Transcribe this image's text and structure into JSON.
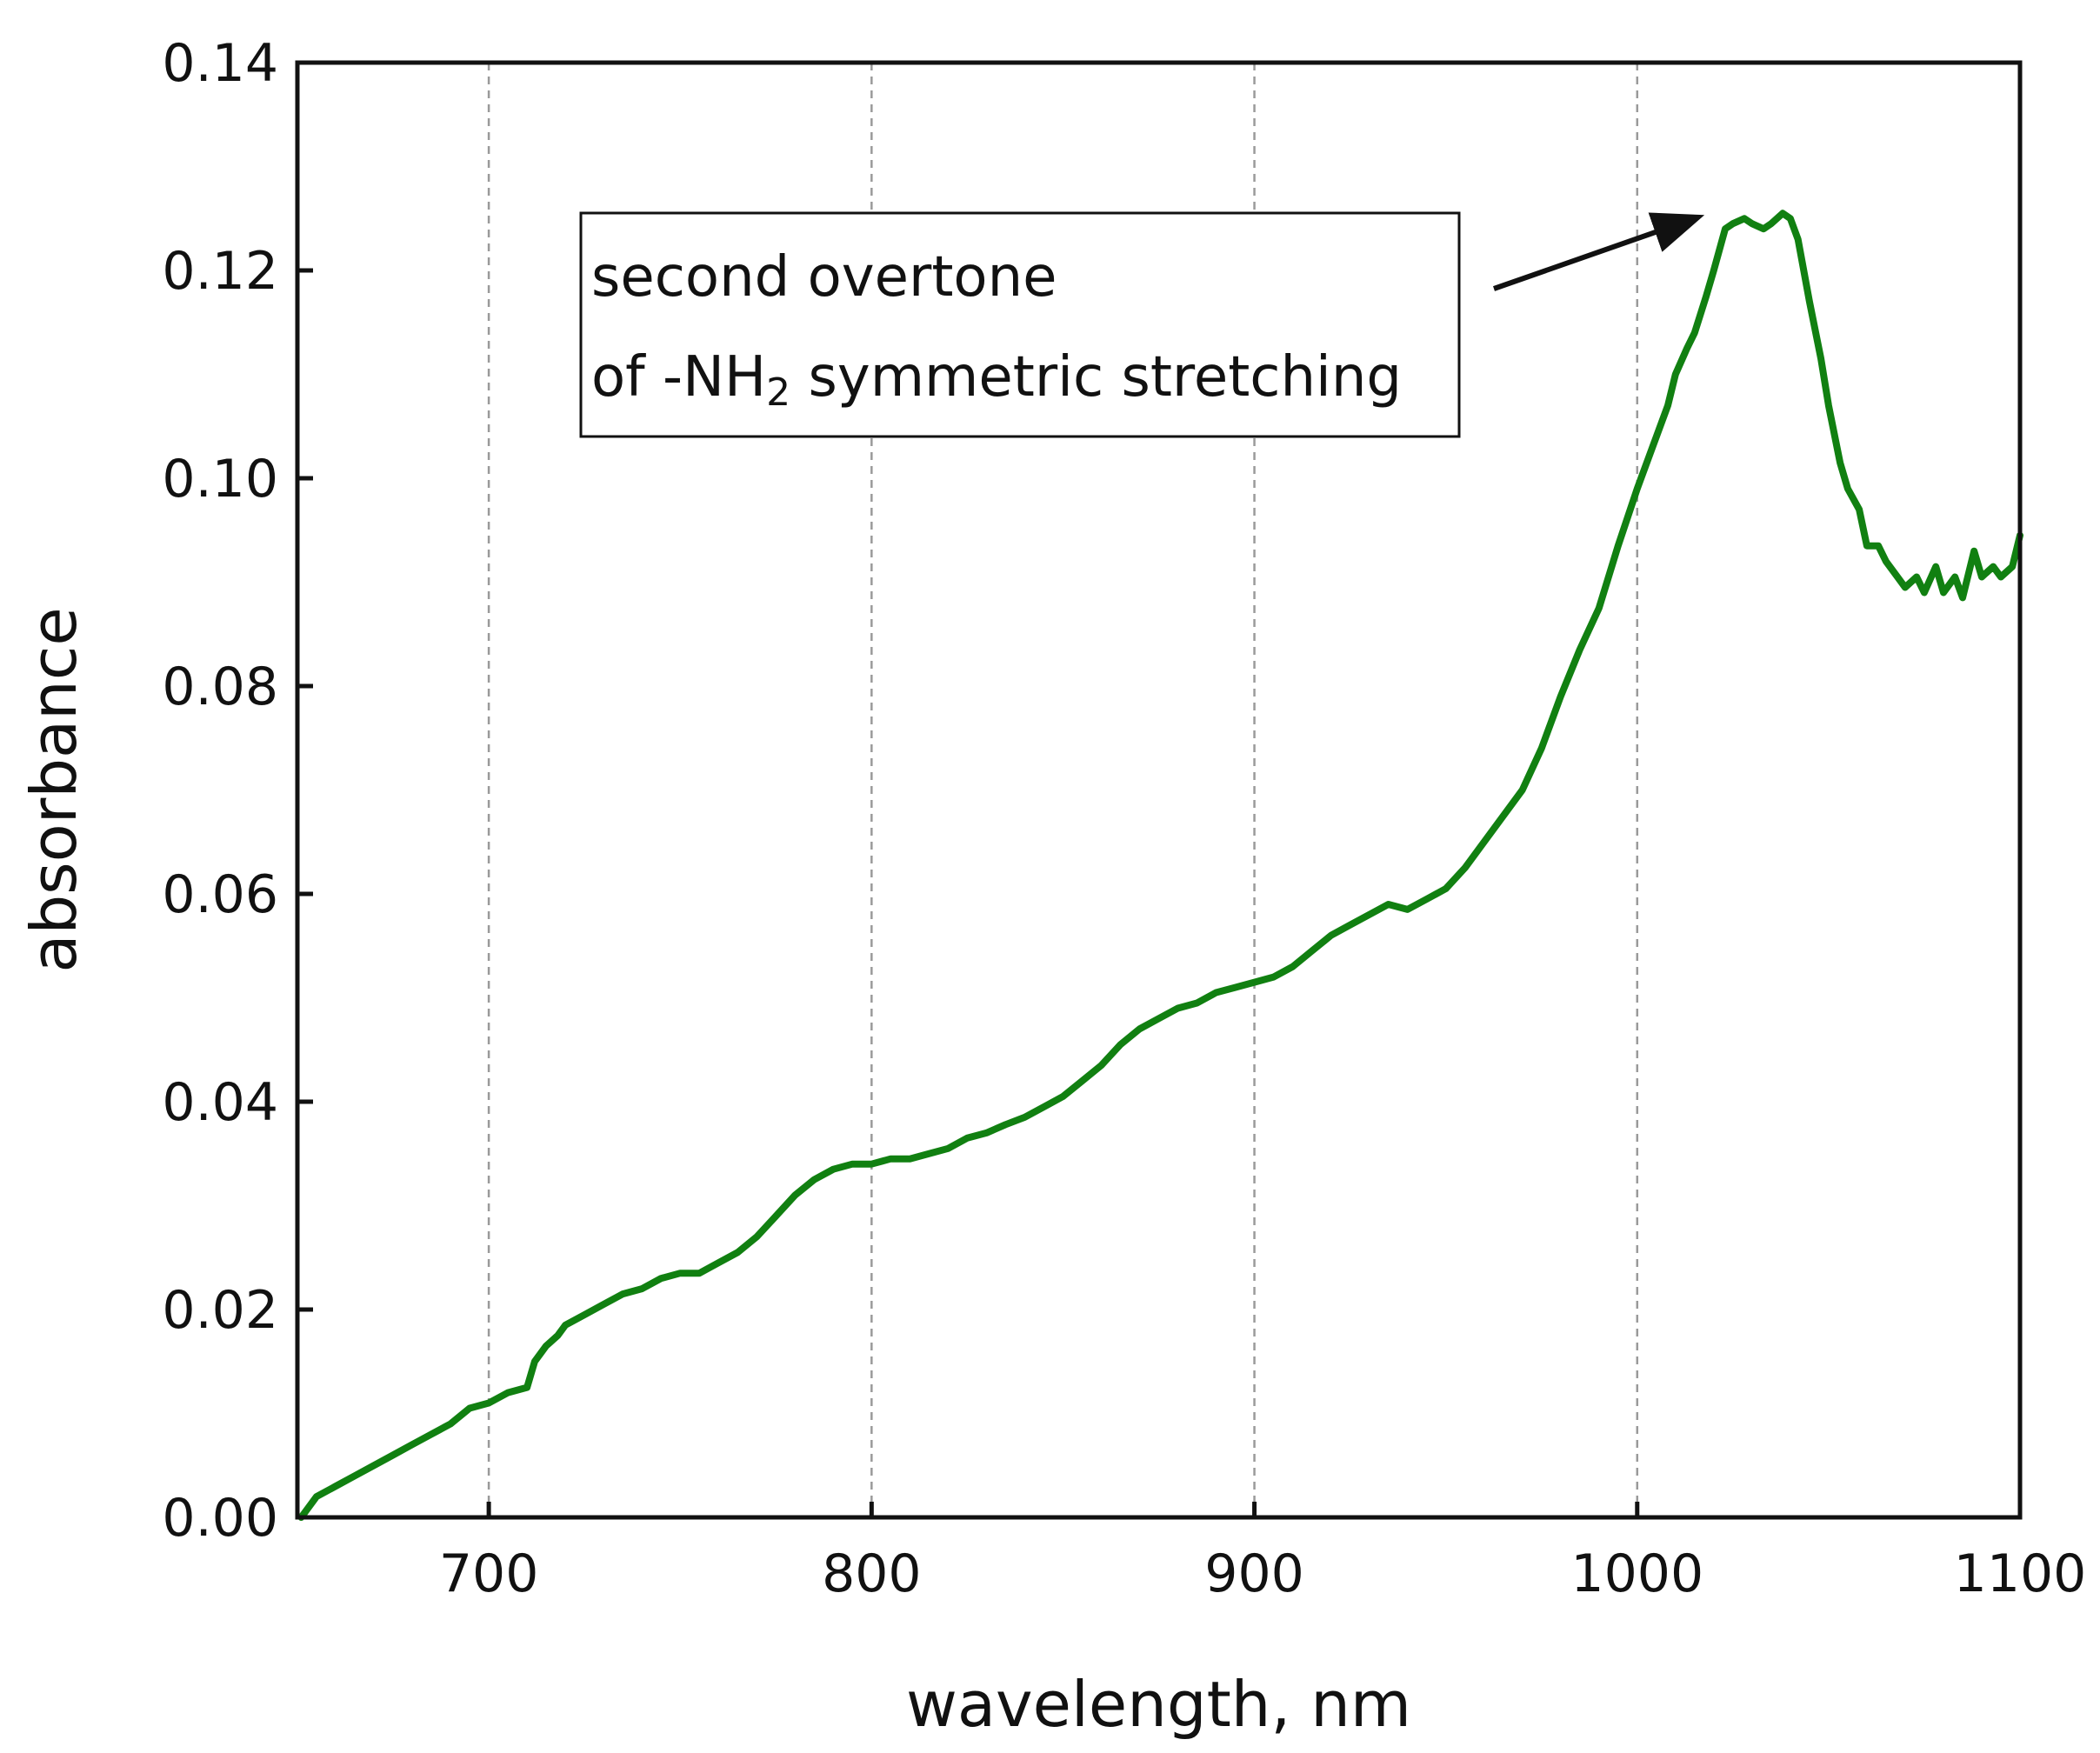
{
  "chart_data": {
    "type": "line",
    "title": "",
    "xlabel": "wavelength, nm",
    "ylabel": "absorbance",
    "xlim": [
      650,
      1100
    ],
    "ylim": [
      0,
      0.14
    ],
    "x_ticks": [
      700,
      800,
      900,
      1000,
      1100
    ],
    "x_tick_labels": [
      "700",
      "800",
      "900",
      "1000",
      "1100"
    ],
    "y_ticks": [
      0.0,
      0.02,
      0.04,
      0.06,
      0.08,
      0.1,
      0.12,
      0.14
    ],
    "y_tick_labels": [
      "0.00",
      "0.02",
      "0.04",
      "0.06",
      "0.08",
      "0.10",
      "0.12",
      "0.14"
    ],
    "grid": "vertical dashed lines at x ticks",
    "line_color": "#118011",
    "grid_color": "#9a9a9a",
    "annotation": {
      "line1": "second overtone",
      "line2_prefix": "of -NH",
      "line2_subscript": "2",
      "line2_suffix": " symmetric stretching",
      "arrow_points_to": [
        1015,
        0.125
      ]
    },
    "series": [
      {
        "x": [
          651,
          655,
          660,
          665,
          670,
          675,
          680,
          685,
          690,
          695,
          700,
          705,
          710,
          712,
          715,
          718,
          720,
          725,
          730,
          735,
          740,
          745,
          750,
          755,
          760,
          765,
          770,
          775,
          780,
          785,
          790,
          795,
          800,
          805,
          810,
          815,
          820,
          825,
          830,
          835,
          840,
          845,
          850,
          855,
          860,
          865,
          870,
          875,
          880,
          885,
          890,
          895,
          900,
          905,
          910,
          915,
          920,
          925,
          930,
          935,
          940,
          945,
          950,
          955,
          960,
          965,
          970,
          975,
          980,
          985,
          990,
          995,
          1000,
          1005,
          1008,
          1010,
          1013,
          1015,
          1018,
          1020,
          1023,
          1025,
          1028,
          1030,
          1033,
          1035,
          1038,
          1040,
          1042,
          1045,
          1048,
          1050,
          1053,
          1055,
          1058,
          1060,
          1063,
          1065,
          1068,
          1070,
          1073,
          1075,
          1078,
          1080,
          1083,
          1085,
          1088,
          1090,
          1093,
          1095,
          1098,
          1100
        ],
        "y": [
          0.0,
          0.002,
          0.003,
          0.004,
          0.005,
          0.006,
          0.007,
          0.008,
          0.009,
          0.0105,
          0.011,
          0.012,
          0.0125,
          0.015,
          0.0165,
          0.0175,
          0.0185,
          0.0195,
          0.0205,
          0.0215,
          0.022,
          0.023,
          0.0235,
          0.0235,
          0.0245,
          0.0255,
          0.027,
          0.029,
          0.031,
          0.0325,
          0.0335,
          0.034,
          0.034,
          0.0345,
          0.0345,
          0.035,
          0.0355,
          0.0365,
          0.037,
          0.0378,
          0.0385,
          0.0395,
          0.0405,
          0.042,
          0.0435,
          0.0455,
          0.047,
          0.048,
          0.049,
          0.0495,
          0.0505,
          0.051,
          0.0515,
          0.052,
          0.053,
          0.0545,
          0.056,
          0.057,
          0.058,
          0.059,
          0.0585,
          0.0595,
          0.0605,
          0.0625,
          0.065,
          0.0675,
          0.07,
          0.074,
          0.079,
          0.0835,
          0.0875,
          0.0935,
          0.099,
          0.104,
          0.107,
          0.11,
          0.1125,
          0.114,
          0.1175,
          0.12,
          0.124,
          0.1245,
          0.125,
          0.1245,
          0.124,
          0.1245,
          0.1255,
          0.125,
          0.123,
          0.117,
          0.1115,
          0.107,
          0.1015,
          0.099,
          0.097,
          0.0935,
          0.0935,
          0.092,
          0.0905,
          0.0895,
          0.0905,
          0.089,
          0.0915,
          0.089,
          0.0905,
          0.0885,
          0.093,
          0.0905,
          0.0915,
          0.0905,
          0.0915,
          0.0945
        ]
      }
    ]
  }
}
